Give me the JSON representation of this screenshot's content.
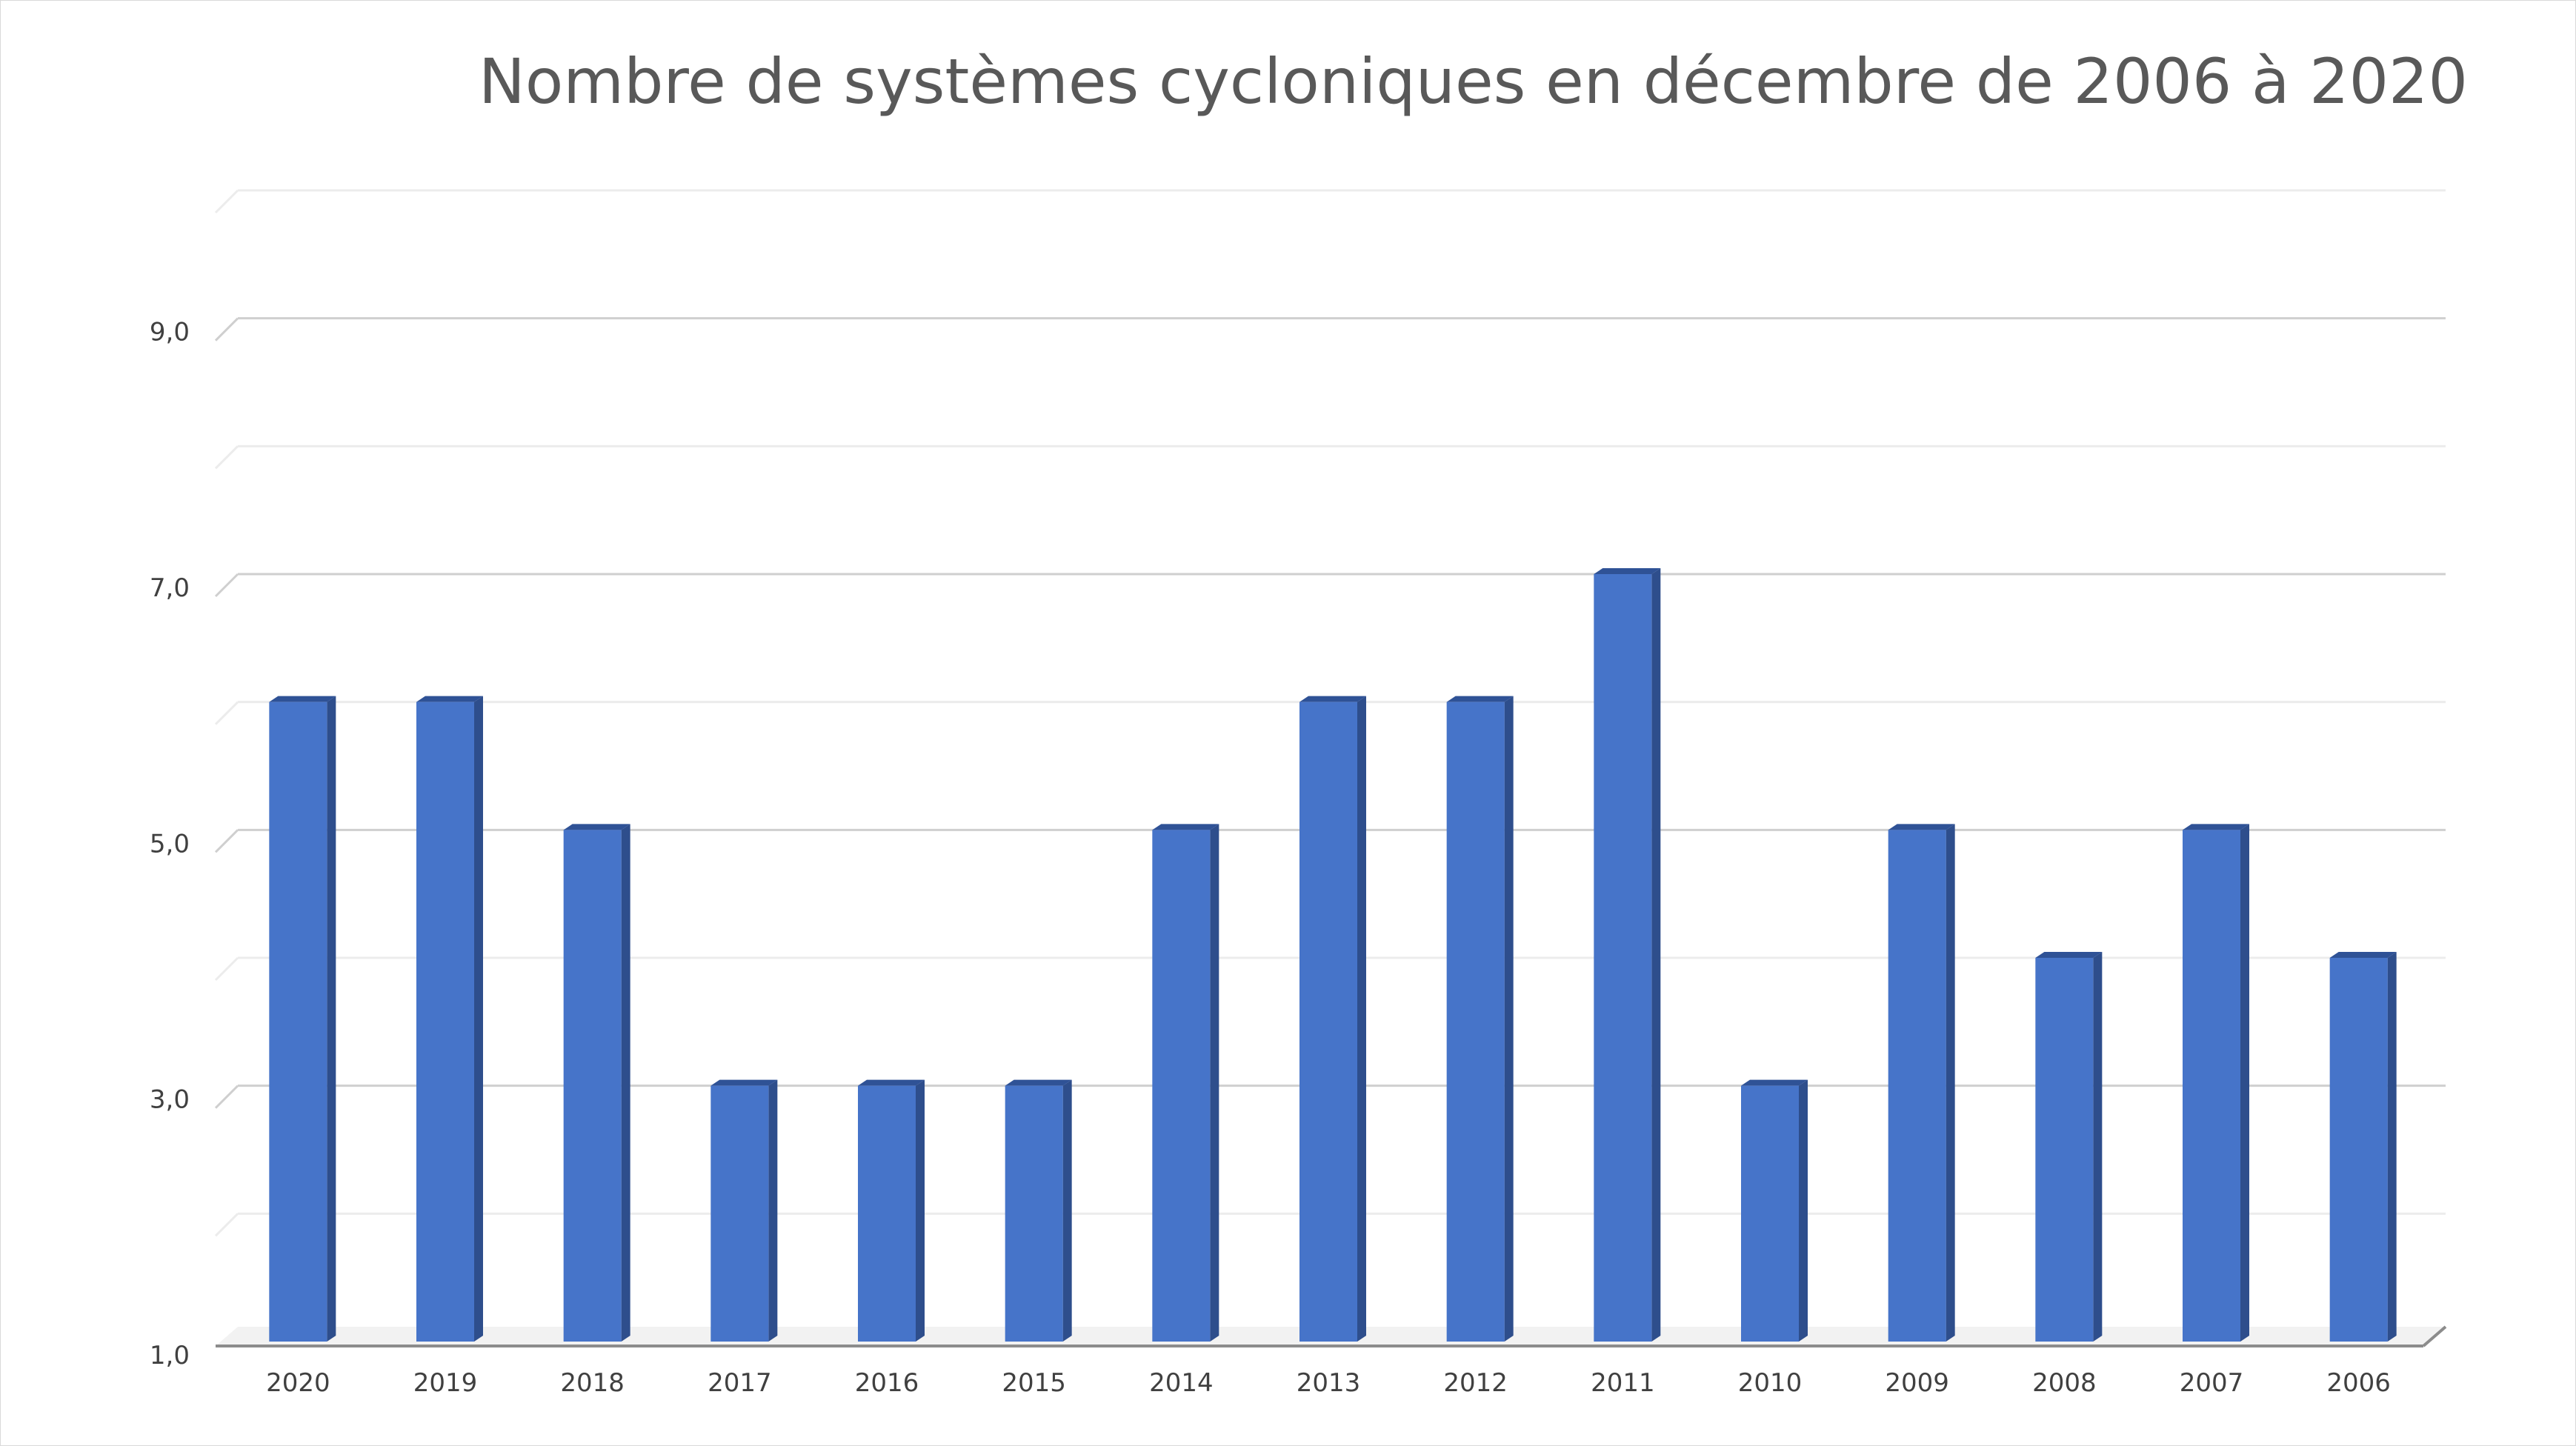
{
  "chart_data": {
    "type": "bar",
    "title": "Nombre de systèmes cycloniques en décembre de 2006 à 2020",
    "xlabel": "",
    "ylabel": "",
    "categories": [
      "2020",
      "2019",
      "2018",
      "2017",
      "2016",
      "2015",
      "2014",
      "2013",
      "2012",
      "2011",
      "2010",
      "2009",
      "2008",
      "2007",
      "2006"
    ],
    "values": [
      6,
      6,
      5,
      3,
      3,
      3,
      5,
      6,
      6,
      7,
      3,
      5,
      4,
      5,
      4
    ],
    "ylim": [
      1,
      10
    ],
    "yticks": [
      1,
      3,
      5,
      7,
      9
    ],
    "ytick_labels": [
      "1,0",
      "3,0",
      "5,0",
      "7,0",
      "9,0"
    ],
    "grid": true,
    "style": "3d-bar",
    "colors": {
      "bar_front": "#4674c9",
      "bar_side": "#2e4e8c",
      "bar_top": "#2f5296",
      "grid_major": "#cfcfcf",
      "grid_minor": "#ececec",
      "axis": "#8c8c8c"
    }
  }
}
